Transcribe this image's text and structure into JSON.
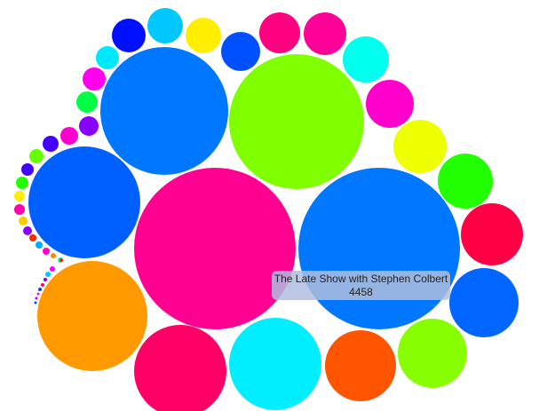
{
  "chart_data": {
    "type": "bubble",
    "title": "",
    "highlighted": {
      "label": "The Late Show with Stephen Colbert",
      "value": 4458
    },
    "bubbles": [
      {
        "color": "#ff0090"
      },
      {
        "color": "#0077ff"
      },
      {
        "color": "#80ff00"
      },
      {
        "color": "#0077ff"
      },
      {
        "color": "#0060ff"
      },
      {
        "color": "#ff9900"
      },
      {
        "color": "#00eeff"
      },
      {
        "color": "#ff0066"
      },
      {
        "color": "#ff5500"
      },
      {
        "color": "#88ff00"
      },
      {
        "color": "#0066ff"
      },
      {
        "color": "#ff0044"
      },
      {
        "color": "#22ff00"
      },
      {
        "color": "#eeff00"
      },
      {
        "color": "#ff00cc"
      },
      {
        "color": "#00ffee"
      },
      {
        "color": "#ff0099"
      },
      {
        "color": "#ff0080"
      },
      {
        "color": "#0050ff"
      },
      {
        "color": "#ffee00"
      },
      {
        "color": "#00c8ff"
      },
      {
        "color": "#0010ff"
      },
      {
        "color": "#00e8ff"
      },
      {
        "color": "#ff00ee"
      },
      {
        "color": "#00ff44"
      },
      {
        "color": "#8800ff"
      },
      {
        "color": "#ff00cc"
      },
      {
        "color": "#4400ff"
      },
      {
        "color": "#66ff00"
      },
      {
        "color": "#4400ff"
      },
      {
        "color": "#22ff00"
      },
      {
        "color": "#ffee00"
      },
      {
        "color": "#ff00aa"
      },
      {
        "color": "#ffcc00"
      },
      {
        "color": "#8800ff"
      },
      {
        "color": "#ff2200"
      },
      {
        "color": "#00aaff"
      },
      {
        "color": "#ff00cc"
      },
      {
        "color": "#ff8800"
      },
      {
        "color": "#00ffaa"
      },
      {
        "color": "#ff2200"
      },
      {
        "color": "#ff00ff"
      },
      {
        "color": "#00c8ff"
      },
      {
        "color": "#8800ff"
      },
      {
        "color": "#ff0066"
      },
      {
        "color": "#0044ff"
      },
      {
        "color": "#ff00ff"
      },
      {
        "color": "#aa00ff"
      },
      {
        "color": "#0044ff"
      }
    ]
  }
}
